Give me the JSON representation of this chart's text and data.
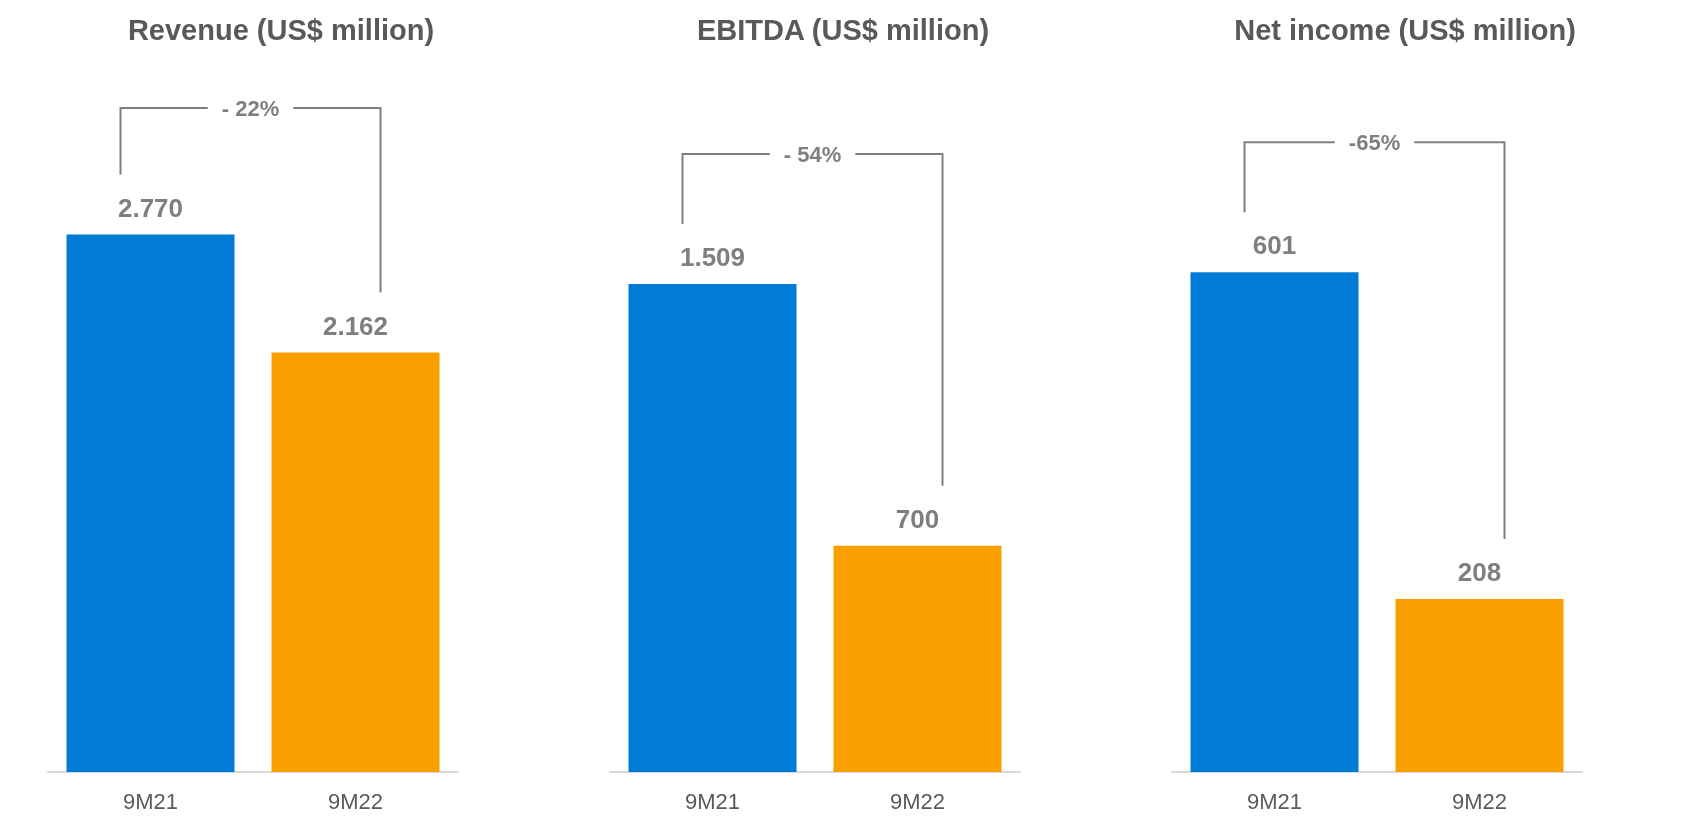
{
  "chart_data": [
    {
      "type": "bar",
      "title": "Revenue (US$ million)",
      "categories": [
        "9M21",
        "9M22"
      ],
      "values": [
        2770,
        2162
      ],
      "colors": [
        "#007cd7",
        "#f9a000"
      ],
      "value_labels": [
        "2.770",
        "2.162"
      ],
      "annotations": [
        "- 22%"
      ],
      "tick_labels": "x"
    },
    {
      "type": "bar",
      "title": "EBITDA (US$ million)",
      "categories": [
        "9M21",
        "9M22"
      ],
      "values": [
        1509,
        700
      ],
      "colors": [
        "#007cd7",
        "#f9a000"
      ],
      "value_labels": [
        "1.509",
        "700"
      ],
      "annotations": [
        "- 54%"
      ],
      "tick_labels": "x"
    },
    {
      "type": "bar",
      "title": "Net income (US$ million)",
      "categories": [
        "9M21",
        "9M22"
      ],
      "values": [
        601,
        208
      ],
      "colors": [
        "#007cd7",
        "#f9a000"
      ],
      "value_labels": [
        "601",
        "208"
      ],
      "annotations": [
        "-65%"
      ],
      "tick_labels": "x"
    }
  ]
}
